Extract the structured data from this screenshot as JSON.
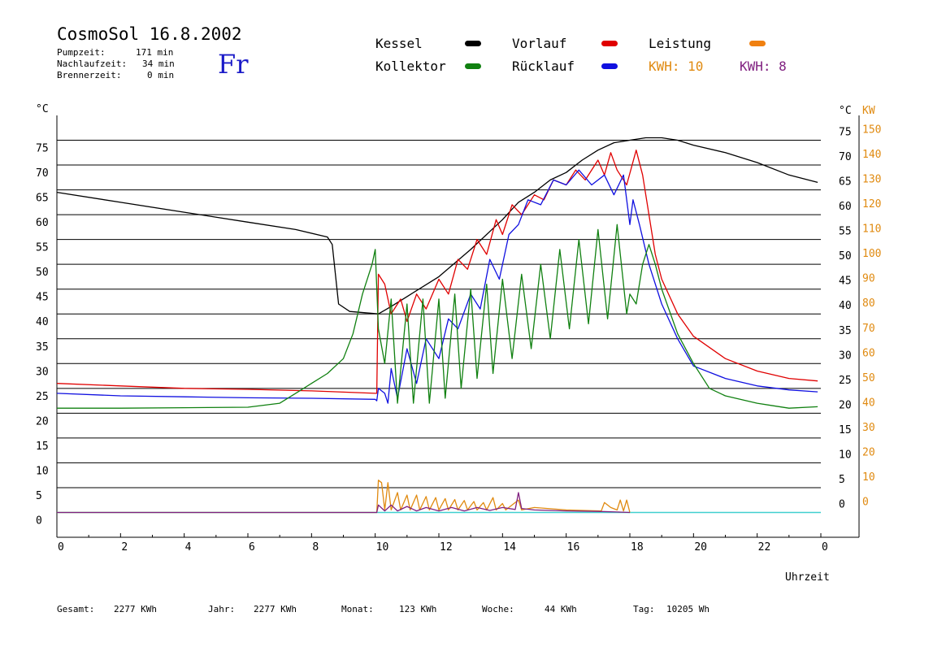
{
  "header": {
    "title": "CosmoSol 16.8.2002",
    "day": "Fr",
    "stats": [
      {
        "label": "Pumpzeit:",
        "value": "171 min"
      },
      {
        "label": "Nachlaufzeit:",
        "value": "34 min"
      },
      {
        "label": "Brennerzeit:",
        "value": "0 min"
      }
    ]
  },
  "legend": {
    "items": [
      {
        "label": "Kessel",
        "color": "#000000"
      },
      {
        "label": "Vorlauf",
        "color": "#e00000"
      },
      {
        "label": "Leistung",
        "color": "#f08010"
      },
      {
        "label": "Kollektor",
        "color": "#108010"
      },
      {
        "label": "Rücklauf",
        "color": "#1010e0"
      }
    ],
    "kwh1": "KWH: 10",
    "kwh2": "KWH: 8",
    "kwh1_color": "#e08a10",
    "kwh2_color": "#802080"
  },
  "footer": {
    "gesamt_label": "Gesamt:",
    "gesamt_value": "2277 KWh",
    "jahr_label": "Jahr:",
    "jahr_value": "2277 KWh",
    "monat_label": "Monat:",
    "monat_value": "123 KWh",
    "woche_label": "Woche:",
    "woche_value": "44 KWh",
    "tag_label": "Tag:",
    "tag_value": "10205 Wh"
  },
  "chart_data": {
    "type": "line",
    "xlabel": "Uhrzeit",
    "ylabel_left": "°C",
    "ylabel_right_temp": "°C",
    "ylabel_right_power": "KW",
    "xlim": [
      0,
      24
    ],
    "ylim": [
      -5,
      80
    ],
    "x_ticks": [
      "0",
      "2",
      "4",
      "6",
      "8",
      "10",
      "12",
      "14",
      "16",
      "18",
      "20",
      "22",
      "0"
    ],
    "y_ticks": [
      0,
      5,
      10,
      15,
      20,
      25,
      30,
      35,
      40,
      45,
      50,
      55,
      60,
      65,
      70,
      75
    ],
    "power_ticks": [
      0,
      10,
      20,
      30,
      40,
      50,
      60,
      70,
      80,
      90,
      100,
      110,
      120,
      130,
      140,
      150
    ],
    "grid": true,
    "series": [
      {
        "name": "Kessel",
        "color": "#000000",
        "points": [
          [
            0,
            64.5
          ],
          [
            2,
            62.5
          ],
          [
            4,
            60.5
          ],
          [
            6,
            58.5
          ],
          [
            7.5,
            57
          ],
          [
            8.5,
            55.5
          ],
          [
            8.65,
            54
          ],
          [
            8.75,
            48
          ],
          [
            8.85,
            42
          ],
          [
            9.2,
            40.5
          ],
          [
            10.1,
            40
          ],
          [
            10.5,
            41.5
          ],
          [
            11,
            43.5
          ],
          [
            12,
            47.5
          ],
          [
            13,
            53
          ],
          [
            14,
            59
          ],
          [
            14.5,
            62.5
          ],
          [
            15,
            64.5
          ],
          [
            15.5,
            67
          ],
          [
            16,
            68.5
          ],
          [
            16.5,
            71
          ],
          [
            17,
            73
          ],
          [
            17.5,
            74.5
          ],
          [
            18,
            75
          ],
          [
            18.5,
            75.5
          ],
          [
            19,
            75.5
          ],
          [
            19.5,
            75
          ],
          [
            20,
            74
          ],
          [
            21,
            72.5
          ],
          [
            22,
            70.5
          ],
          [
            23,
            68
          ],
          [
            23.9,
            66.5
          ]
        ]
      },
      {
        "name": "Vorlauf",
        "color": "#e00000",
        "points": [
          [
            0,
            26
          ],
          [
            2,
            25.5
          ],
          [
            4,
            25
          ],
          [
            6,
            24.8
          ],
          [
            8,
            24.5
          ],
          [
            10,
            24
          ],
          [
            10.05,
            24
          ],
          [
            10.1,
            48
          ],
          [
            10.3,
            46
          ],
          [
            10.5,
            40
          ],
          [
            10.8,
            43
          ],
          [
            11,
            38.5
          ],
          [
            11.3,
            44
          ],
          [
            11.6,
            41
          ],
          [
            12,
            47
          ],
          [
            12.3,
            44
          ],
          [
            12.6,
            51
          ],
          [
            12.9,
            49
          ],
          [
            13.2,
            55
          ],
          [
            13.5,
            52
          ],
          [
            13.8,
            59
          ],
          [
            14,
            56
          ],
          [
            14.3,
            62
          ],
          [
            14.6,
            60
          ],
          [
            15,
            64
          ],
          [
            15.3,
            63
          ],
          [
            15.6,
            67
          ],
          [
            16,
            66
          ],
          [
            16.3,
            69
          ],
          [
            16.6,
            67
          ],
          [
            17,
            71
          ],
          [
            17.2,
            68
          ],
          [
            17.4,
            72.5
          ],
          [
            17.6,
            69
          ],
          [
            17.9,
            66
          ],
          [
            18.2,
            73
          ],
          [
            18.4,
            68
          ],
          [
            18.6,
            60
          ],
          [
            18.8,
            52
          ],
          [
            19,
            47
          ],
          [
            19.5,
            40
          ],
          [
            20,
            35.5
          ],
          [
            21,
            31
          ],
          [
            22,
            28.5
          ],
          [
            23,
            27
          ],
          [
            23.9,
            26.5
          ]
        ]
      },
      {
        "name": "Rücklauf",
        "color": "#1010e0",
        "points": [
          [
            0,
            24
          ],
          [
            2,
            23.5
          ],
          [
            4,
            23.3
          ],
          [
            6,
            23.1
          ],
          [
            8,
            23
          ],
          [
            10,
            22.8
          ],
          [
            10.05,
            22.5
          ],
          [
            10.1,
            25
          ],
          [
            10.3,
            24
          ],
          [
            10.4,
            22
          ],
          [
            10.5,
            29
          ],
          [
            10.7,
            23
          ],
          [
            11,
            33
          ],
          [
            11.3,
            26
          ],
          [
            11.6,
            35
          ],
          [
            12,
            31
          ],
          [
            12.3,
            39
          ],
          [
            12.6,
            37
          ],
          [
            13,
            44
          ],
          [
            13.3,
            41
          ],
          [
            13.6,
            51
          ],
          [
            13.9,
            47
          ],
          [
            14.2,
            56
          ],
          [
            14.5,
            58
          ],
          [
            14.8,
            63
          ],
          [
            15.2,
            62
          ],
          [
            15.6,
            67
          ],
          [
            16,
            66
          ],
          [
            16.4,
            69
          ],
          [
            16.8,
            66
          ],
          [
            17.2,
            68
          ],
          [
            17.5,
            64
          ],
          [
            17.8,
            68
          ],
          [
            18,
            58
          ],
          [
            18.1,
            63
          ],
          [
            18.3,
            58
          ],
          [
            18.6,
            50
          ],
          [
            19,
            42
          ],
          [
            19.5,
            35
          ],
          [
            20,
            29.5
          ],
          [
            21,
            27
          ],
          [
            22,
            25.5
          ],
          [
            23,
            24.7
          ],
          [
            23.9,
            24.3
          ]
        ]
      },
      {
        "name": "Kollektor",
        "color": "#108010",
        "points": [
          [
            0,
            21
          ],
          [
            2,
            21
          ],
          [
            4,
            21.1
          ],
          [
            6,
            21.2
          ],
          [
            7,
            22
          ],
          [
            7.5,
            24
          ],
          [
            8,
            26
          ],
          [
            8.5,
            28
          ],
          [
            9,
            31
          ],
          [
            9.3,
            36
          ],
          [
            9.6,
            44
          ],
          [
            9.9,
            50
          ],
          [
            10,
            53
          ],
          [
            10.1,
            37
          ],
          [
            10.3,
            30
          ],
          [
            10.5,
            43
          ],
          [
            10.7,
            22
          ],
          [
            11,
            42
          ],
          [
            11.2,
            22
          ],
          [
            11.5,
            43
          ],
          [
            11.7,
            22
          ],
          [
            12,
            43
          ],
          [
            12.2,
            23
          ],
          [
            12.5,
            44
          ],
          [
            12.7,
            25
          ],
          [
            13,
            45
          ],
          [
            13.2,
            27
          ],
          [
            13.5,
            46
          ],
          [
            13.7,
            28
          ],
          [
            14,
            47
          ],
          [
            14.3,
            31
          ],
          [
            14.6,
            48
          ],
          [
            14.9,
            33
          ],
          [
            15.2,
            50
          ],
          [
            15.5,
            35
          ],
          [
            15.8,
            53
          ],
          [
            16.1,
            37
          ],
          [
            16.4,
            55
          ],
          [
            16.7,
            38
          ],
          [
            17,
            57
          ],
          [
            17.3,
            39
          ],
          [
            17.6,
            58
          ],
          [
            17.9,
            40
          ],
          [
            18,
            44
          ],
          [
            18.2,
            42
          ],
          [
            18.4,
            50
          ],
          [
            18.6,
            54
          ],
          [
            18.8,
            50
          ],
          [
            19,
            45
          ],
          [
            19.5,
            36
          ],
          [
            20,
            30
          ],
          [
            20.5,
            25
          ],
          [
            21,
            23.5
          ],
          [
            22,
            22
          ],
          [
            22.5,
            21.5
          ],
          [
            23,
            21
          ],
          [
            23.9,
            21.3
          ]
        ]
      },
      {
        "name": "Leistung",
        "color": "#e08a10",
        "points": [
          [
            0,
            0
          ],
          [
            10.05,
            0
          ],
          [
            10.1,
            6.5
          ],
          [
            10.2,
            6
          ],
          [
            10.3,
            0.5
          ],
          [
            10.4,
            6
          ],
          [
            10.5,
            0.5
          ],
          [
            10.7,
            4
          ],
          [
            10.8,
            0.5
          ],
          [
            11,
            3.5
          ],
          [
            11.1,
            0.5
          ],
          [
            11.3,
            3.5
          ],
          [
            11.4,
            0.5
          ],
          [
            11.6,
            3.2
          ],
          [
            11.7,
            0.5
          ],
          [
            11.9,
            3
          ],
          [
            12,
            0.5
          ],
          [
            12.2,
            2.8
          ],
          [
            12.3,
            0.5
          ],
          [
            12.5,
            2.6
          ],
          [
            12.6,
            0.5
          ],
          [
            12.8,
            2.4
          ],
          [
            12.9,
            0.5
          ],
          [
            13.1,
            2.2
          ],
          [
            13.2,
            0.5
          ],
          [
            13.4,
            2
          ],
          [
            13.5,
            0.5
          ],
          [
            13.7,
            3
          ],
          [
            13.8,
            0.5
          ],
          [
            14,
            1.8
          ],
          [
            14.1,
            0.5
          ],
          [
            14.3,
            1.5
          ],
          [
            14.5,
            2.5
          ],
          [
            14.6,
            0.5
          ],
          [
            15,
            1
          ],
          [
            16,
            0.5
          ],
          [
            17.1,
            0.3
          ],
          [
            17.2,
            2
          ],
          [
            17.4,
            1
          ],
          [
            17.6,
            0.5
          ],
          [
            17.7,
            2.5
          ],
          [
            17.8,
            0.3
          ],
          [
            17.9,
            2.5
          ],
          [
            18,
            0
          ]
        ]
      },
      {
        "name": "Leistung 2",
        "color": "#802080",
        "points": [
          [
            0,
            0
          ],
          [
            10.05,
            0
          ],
          [
            10.1,
            1.5
          ],
          [
            10.3,
            0.3
          ],
          [
            10.5,
            1.5
          ],
          [
            10.7,
            0.3
          ],
          [
            11,
            1.2
          ],
          [
            11.3,
            0.3
          ],
          [
            11.6,
            1
          ],
          [
            12,
            0.3
          ],
          [
            12.4,
            1
          ],
          [
            12.8,
            0.3
          ],
          [
            13.2,
            1
          ],
          [
            13.6,
            0.4
          ],
          [
            14,
            1
          ],
          [
            14.4,
            0.6
          ],
          [
            14.5,
            4
          ],
          [
            14.6,
            0.8
          ],
          [
            15,
            0.5
          ],
          [
            16,
            0.3
          ],
          [
            17,
            0.2
          ],
          [
            17.6,
            0.1
          ],
          [
            18,
            0
          ]
        ]
      }
    ],
    "zero_line_color": "#40d0d0"
  }
}
